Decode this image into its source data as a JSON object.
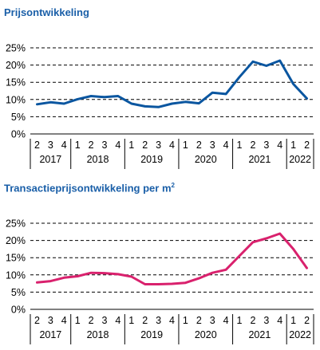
{
  "chart_data": [
    {
      "type": "line",
      "title": "Prijsontwikkeling",
      "color": "#0a56a0",
      "ylim": [
        0,
        25
      ],
      "y_ticks": [
        "0%",
        "5%",
        "10%",
        "15%",
        "20%",
        "25%"
      ],
      "quarter_labels": [
        "2",
        "3",
        "4",
        "1",
        "2",
        "3",
        "4",
        "1",
        "2",
        "3",
        "4",
        "1",
        "2",
        "3",
        "4",
        "1",
        "2",
        "3",
        "4",
        "1",
        "2"
      ],
      "years": [
        {
          "label": "2017",
          "quarters": 3
        },
        {
          "label": "2018",
          "quarters": 4
        },
        {
          "label": "2019",
          "quarters": 4
        },
        {
          "label": "2020",
          "quarters": 4
        },
        {
          "label": "2021",
          "quarters": 4
        },
        {
          "label": "2022",
          "quarters": 2
        }
      ],
      "grid": "dashed horizontal",
      "series": [
        {
          "values": [
            8.6,
            9.2,
            8.8,
            10.1,
            11.0,
            10.7,
            11.0,
            8.8,
            8.0,
            7.8,
            8.8,
            9.3,
            8.9,
            12.0,
            11.6,
            16.5,
            21.0,
            19.8,
            21.3,
            14.5,
            10.3
          ]
        }
      ]
    },
    {
      "type": "line",
      "title": "Transactieprijsontwikkeling per m",
      "title_sup": "2",
      "color": "#d9216d",
      "ylim": [
        0,
        25
      ],
      "y_ticks": [
        "0%",
        "5%",
        "10%",
        "15%",
        "20%",
        "25%"
      ],
      "quarter_labels": [
        "2",
        "3",
        "4",
        "1",
        "2",
        "3",
        "4",
        "1",
        "2",
        "3",
        "4",
        "1",
        "2",
        "3",
        "4",
        "1",
        "2",
        "3",
        "4",
        "1",
        "2"
      ],
      "years": [
        {
          "label": "2017",
          "quarters": 3
        },
        {
          "label": "2018",
          "quarters": 4
        },
        {
          "label": "2019",
          "quarters": 4
        },
        {
          "label": "2020",
          "quarters": 4
        },
        {
          "label": "2021",
          "quarters": 4
        },
        {
          "label": "2022",
          "quarters": 2
        }
      ],
      "grid": "dashed horizontal",
      "series": [
        {
          "values": [
            7.8,
            8.2,
            9.2,
            9.6,
            10.6,
            10.5,
            10.2,
            9.5,
            7.3,
            7.3,
            7.4,
            7.7,
            9.0,
            10.6,
            11.5,
            15.5,
            19.5,
            20.6,
            22.0,
            17.5,
            12.0
          ]
        }
      ]
    }
  ]
}
